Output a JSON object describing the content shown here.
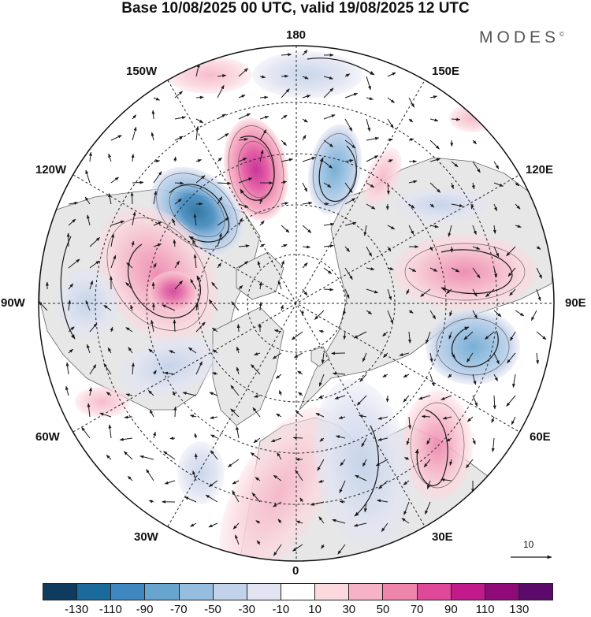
{
  "title": "Base 10/08/2025 00 UTC, valid 19/08/2025 12 UTC",
  "brand": {
    "name": "MODES",
    "mark": "©"
  },
  "longitude_labels": {
    "n180": "180",
    "w150": "150W",
    "e150": "150E",
    "w120": "120W",
    "e120": "120E",
    "w90": "90W",
    "e90": "90E",
    "w60": "60W",
    "e60": "60E",
    "w30": "30W",
    "e30": "30E",
    "s0": "0"
  },
  "vector_scale": {
    "label": "10"
  },
  "colorbar": {
    "colors": [
      "#0f3b5f",
      "#1a6a9c",
      "#3f88bf",
      "#67a5cf",
      "#95bde0",
      "#c1d2ea",
      "#e2e4f2",
      "#ffffff",
      "#fbd9df",
      "#f7b3c6",
      "#ef84ad",
      "#e0499a",
      "#c21a8a",
      "#8f0b7a",
      "#5b0a6c"
    ],
    "tick_labels": [
      "-130",
      "-110",
      "-90",
      "-70",
      "-50",
      "-30",
      "-10",
      "10",
      "30",
      "50",
      "70",
      "90",
      "110",
      "130"
    ]
  },
  "colors": {
    "land": "#e7e7e7",
    "coast": "#666666",
    "grid": "#222222",
    "vector": "#1a1a1a"
  }
}
